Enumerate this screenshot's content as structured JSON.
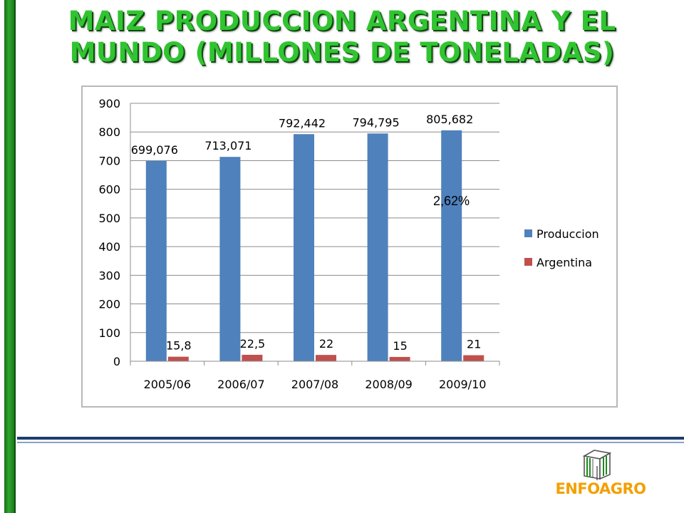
{
  "title": "MAIZ PRODUCCION ARGENTINA Y EL MUNDO (MILLONES DE TONELADAS)",
  "annotation": "2,62%",
  "logo_text": "ENFOAGRO",
  "colors": {
    "produccion": "#4f81bd",
    "argentina": "#c0504d",
    "title_green": "#31c431",
    "logo_orange": "#f2a000"
  },
  "chart_data": {
    "type": "bar",
    "categories": [
      "2005/06",
      "2006/07",
      "2007/08",
      "2008/09",
      "2009/10"
    ],
    "series": [
      {
        "name": "Produccion",
        "values": [
          699.076,
          713.071,
          792.442,
          794.795,
          805.682
        ],
        "labels": [
          "699,076",
          "713,071",
          "792,442",
          "794,795",
          "805,682"
        ]
      },
      {
        "name": "Argentina",
        "values": [
          15.8,
          22.5,
          22,
          15,
          21
        ],
        "labels": [
          "15,8",
          "22,5",
          "22",
          "15",
          "21"
        ]
      }
    ],
    "ylim": [
      0,
      900
    ],
    "yticks": [
      0,
      100,
      200,
      300,
      400,
      500,
      600,
      700,
      800,
      900
    ],
    "grid": true,
    "legend_position": "right"
  }
}
